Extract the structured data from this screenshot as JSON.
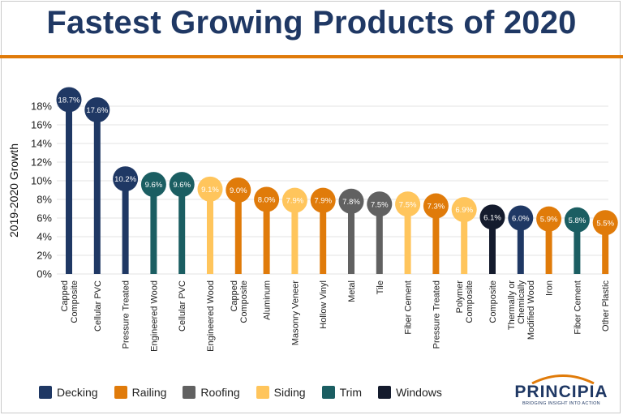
{
  "title": "Fastest Growing Products of 2020",
  "colors": {
    "accent_rule": "#e07b0a",
    "title": "#1f3864",
    "Decking": "#1f3864",
    "Railing": "#e07b0a",
    "Roofing": "#616161",
    "Siding": "#ffc55c",
    "Trim": "#1b5e62",
    "Windows": "#141b2d"
  },
  "legend": [
    "Decking",
    "Railing",
    "Roofing",
    "Siding",
    "Trim",
    "Windows"
  ],
  "logo": {
    "name": "PRINCIPIA",
    "tagline": "BRIDGING INSIGHT INTO ACTION"
  },
  "chart_data": {
    "type": "lollipop",
    "title": "Fastest Growing Products of 2020",
    "ylabel": "2019-2020 Growth",
    "xlabel": "",
    "ylim": [
      0,
      18
    ],
    "yticks": [
      0,
      2,
      4,
      6,
      8,
      10,
      12,
      14,
      16,
      18
    ],
    "grid": true,
    "legend_position": "bottom-left",
    "categories": [
      [
        "Capped",
        "Composite"
      ],
      [
        "Cellular PVC"
      ],
      [
        "Pressure Treated"
      ],
      [
        "Engineered Wood"
      ],
      [
        "Cellular PVC"
      ],
      [
        "Engineered Wood"
      ],
      [
        "Capped",
        "Composite"
      ],
      [
        "Aluminum"
      ],
      [
        "Masonry Veneer"
      ],
      [
        "Hollow Vinyl"
      ],
      [
        "Metal"
      ],
      [
        "Tile"
      ],
      [
        "Fiber Cement"
      ],
      [
        "Pressure Treated"
      ],
      [
        "Polymer",
        "Composite"
      ],
      [
        "Composite"
      ],
      [
        "Thermally or",
        "Chemically",
        "Modified Wood"
      ],
      [
        "Iron"
      ],
      [
        "Fiber Cement"
      ],
      [
        "Other Plastic"
      ]
    ],
    "values": [
      18.7,
      17.6,
      10.2,
      9.6,
      9.6,
      9.1,
      9.0,
      8.0,
      7.9,
      7.9,
      7.8,
      7.5,
      7.5,
      7.3,
      6.9,
      6.1,
      6.0,
      5.9,
      5.8,
      5.5
    ],
    "data_labels": [
      "18.7%",
      "17.6%",
      "10.2%",
      "9.6%",
      "9.6%",
      "9.1%",
      "9.0%",
      "8.0%",
      "7.9%",
      "7.9%",
      "7.8%",
      "7.5%",
      "7.5%",
      "7.3%",
      "6.9%",
      "6.1%",
      "6.0%",
      "5.9%",
      "5.8%",
      "5.5%"
    ],
    "groups": [
      "Decking",
      "Decking",
      "Decking",
      "Trim",
      "Trim",
      "Siding",
      "Railing",
      "Railing",
      "Siding",
      "Railing",
      "Roofing",
      "Roofing",
      "Siding",
      "Railing",
      "Siding",
      "Windows",
      "Decking",
      "Railing",
      "Trim",
      "Railing"
    ]
  }
}
